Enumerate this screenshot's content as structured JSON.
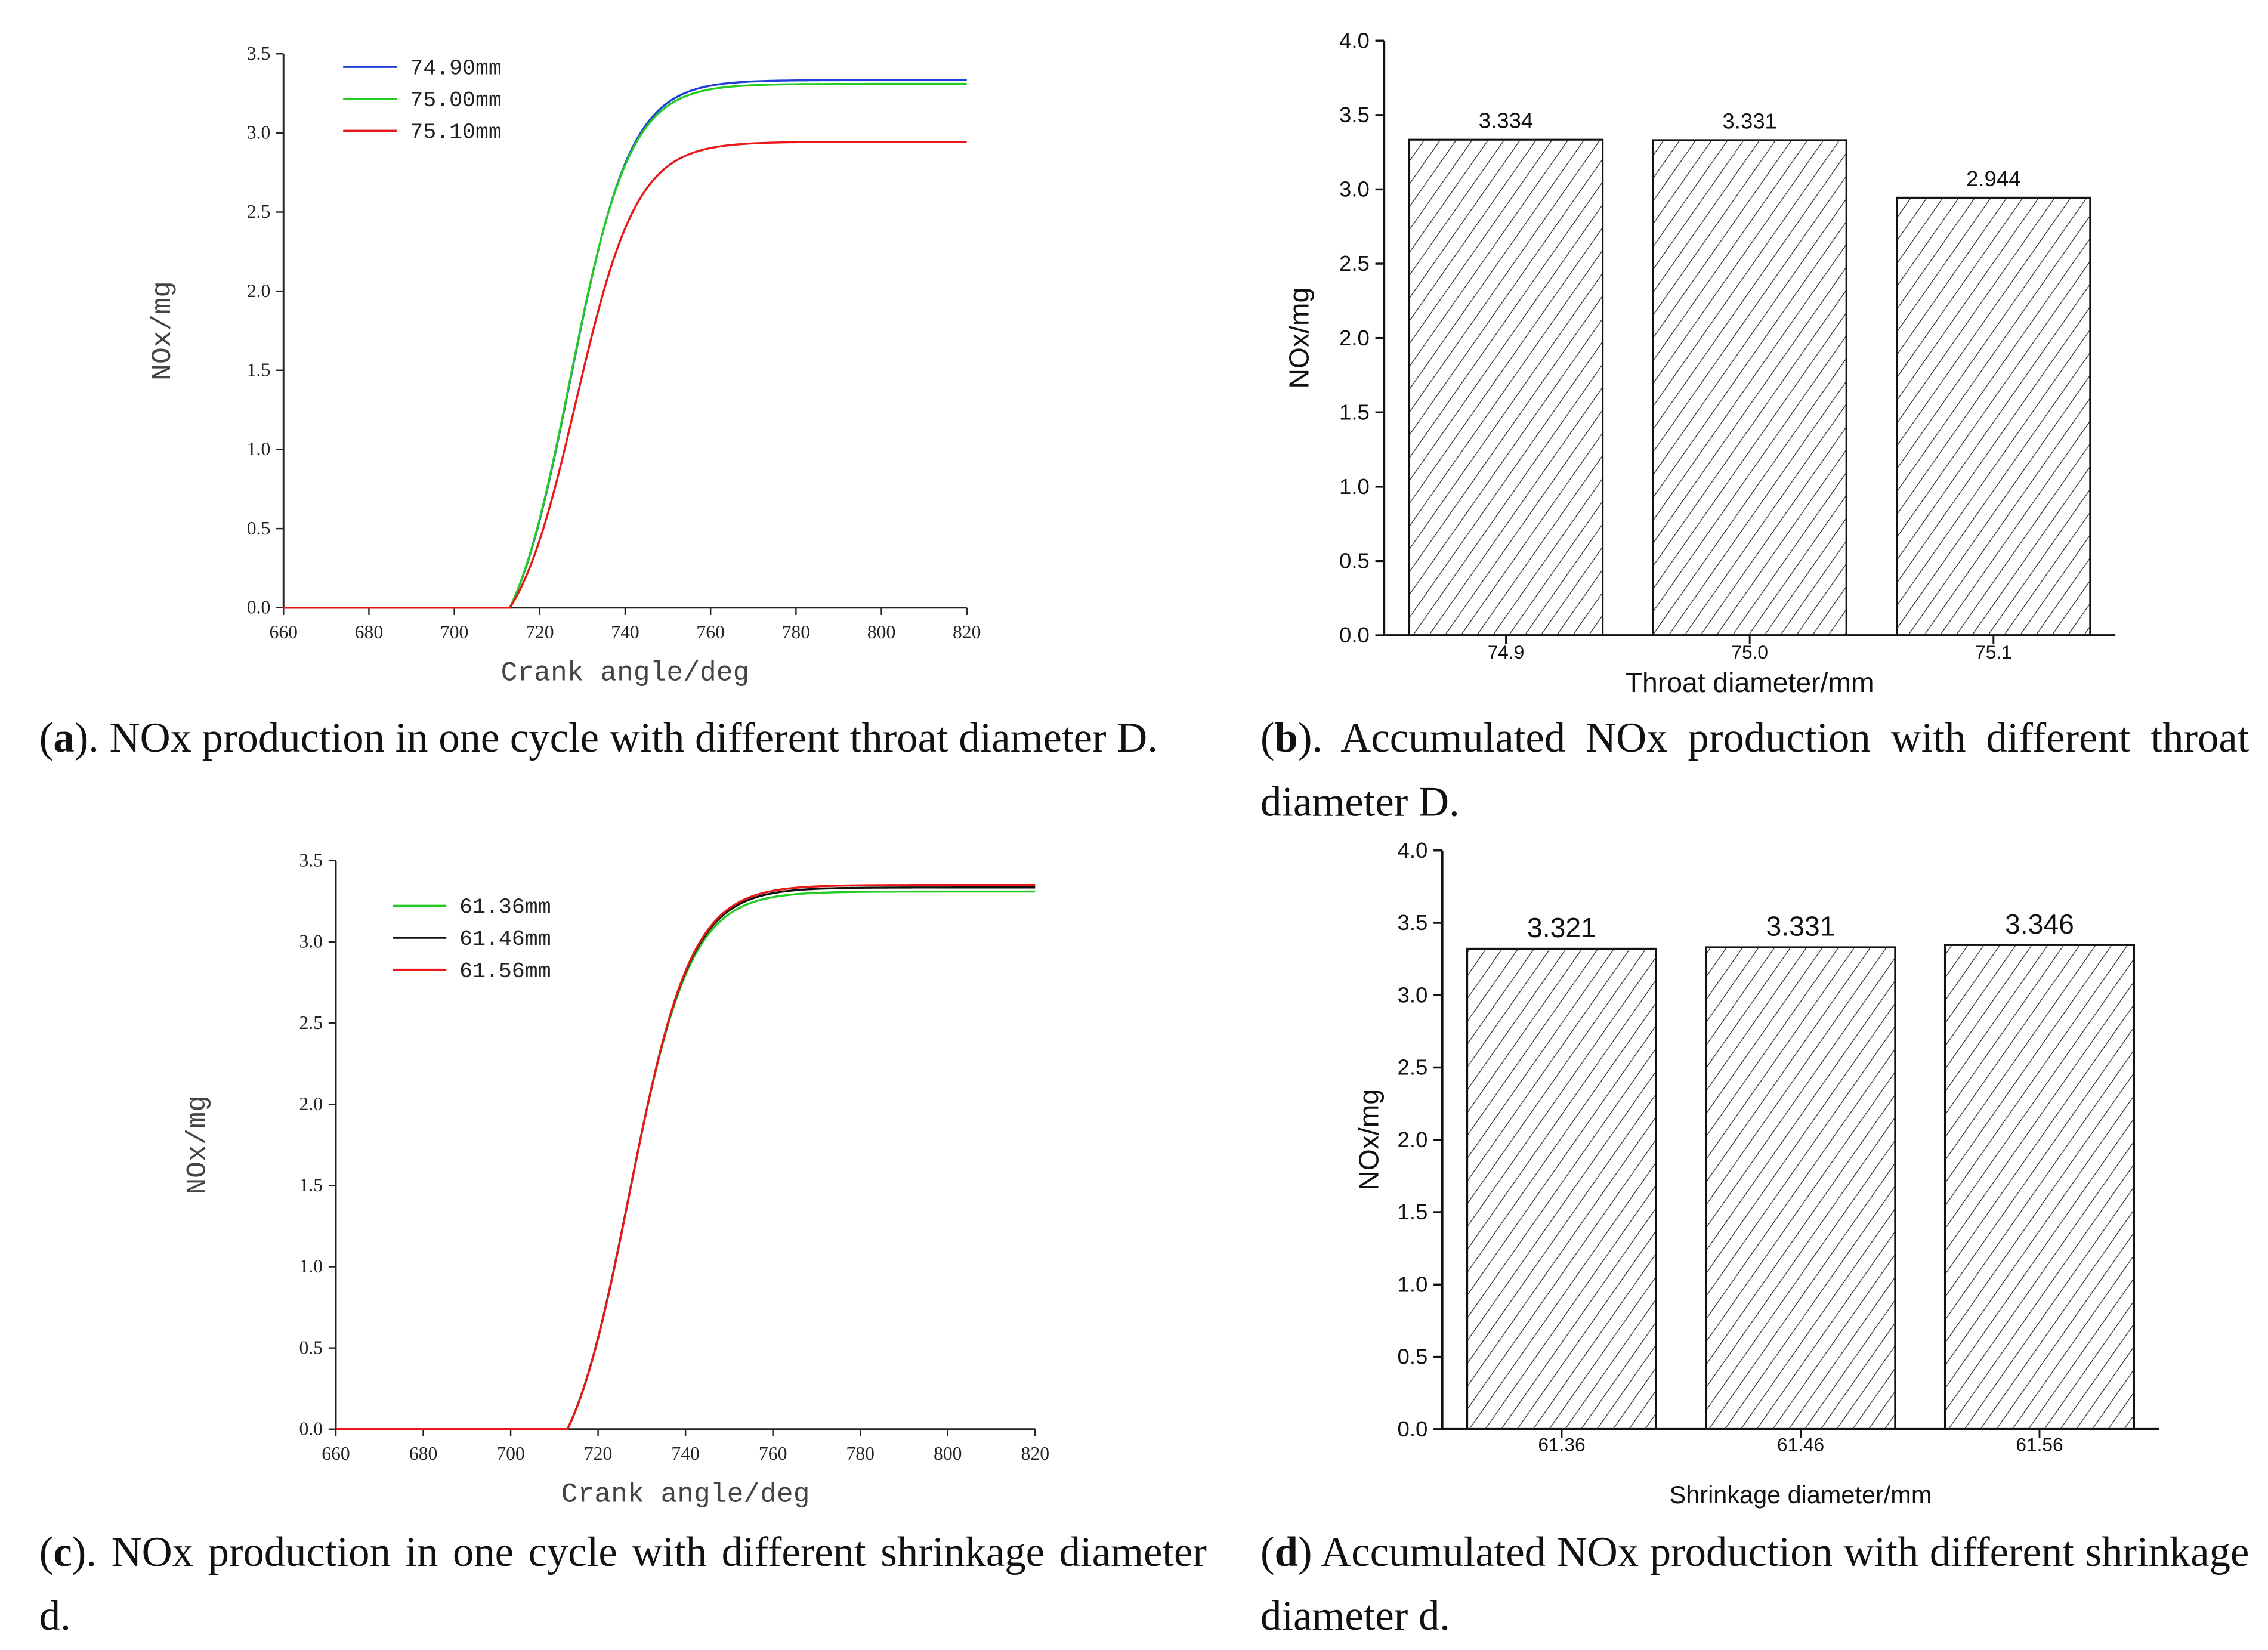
{
  "chart_data": [
    {
      "id": "a",
      "type": "line",
      "xlabel": "Crank angle/deg",
      "ylabel": "NOx/mg",
      "xlim": [
        660,
        820
      ],
      "ylim": [
        0,
        3.5
      ],
      "xticks": [
        "660",
        "680",
        "700",
        "720",
        "740",
        "760",
        "780",
        "800",
        "820"
      ],
      "yticks": [
        "0.0",
        "0.5",
        "1.0",
        "1.5",
        "2.0",
        "2.5",
        "3.0",
        "3.5"
      ],
      "legend": "top-left",
      "series": [
        {
          "name": "74.90mm",
          "color": "#1f3fd8",
          "onset": 713,
          "final": 3.334,
          "rate": 0.142,
          "center": 727.2
        },
        {
          "name": "75.00mm",
          "color": "#22cc22",
          "onset": 713,
          "final": 3.31,
          "rate": 0.142,
          "center": 727.0
        },
        {
          "name": "75.10mm",
          "color": "#e81818",
          "onset": 713,
          "final": 2.944,
          "rate": 0.14,
          "center": 728.5
        }
      ]
    },
    {
      "id": "b",
      "type": "bar",
      "xlabel": "Throat diameter/mm",
      "ylabel": "NOx/mg",
      "ylim": [
        0,
        4.0
      ],
      "yticks": [
        "0.0",
        "0.5",
        "1.0",
        "1.5",
        "2.0",
        "2.5",
        "3.0",
        "3.5",
        "4.0"
      ],
      "categories": [
        "74.9",
        "75.0",
        "75.1"
      ],
      "values": [
        3.334,
        3.331,
        2.944
      ],
      "value_labels": [
        "3.334",
        "3.331",
        "2.944"
      ],
      "fill": "hatched"
    },
    {
      "id": "c",
      "type": "line",
      "xlabel": "Crank angle/deg",
      "ylabel": "NOx/mg",
      "xlim": [
        660,
        820
      ],
      "ylim": [
        0,
        3.5
      ],
      "xticks": [
        "660",
        "680",
        "700",
        "720",
        "740",
        "760",
        "780",
        "800",
        "820"
      ],
      "yticks": [
        "0.0",
        "0.5",
        "1.0",
        "1.5",
        "2.0",
        "2.5",
        "3.0",
        "3.5"
      ],
      "legend": "top-left",
      "series": [
        {
          "name": "61.36mm",
          "color": "#22cc22",
          "onset": 713,
          "final": 3.31,
          "rate": 0.142,
          "center": 727.0
        },
        {
          "name": "61.46mm",
          "color": "#111111",
          "onset": 713,
          "final": 3.335,
          "rate": 0.142,
          "center": 727.1
        },
        {
          "name": "61.56mm",
          "color": "#e81818",
          "onset": 713,
          "final": 3.35,
          "rate": 0.142,
          "center": 727.2
        }
      ]
    },
    {
      "id": "d",
      "type": "bar",
      "xlabel": "Shrinkage diameter/mm",
      "ylabel": "NOx/mg",
      "ylim": [
        0,
        4.0
      ],
      "yticks": [
        "0.0",
        "0.5",
        "1.0",
        "1.5",
        "2.0",
        "2.5",
        "3.0",
        "3.5",
        "4.0"
      ],
      "categories": [
        "61.36",
        "61.46",
        "61.56"
      ],
      "values": [
        3.321,
        3.331,
        3.346
      ],
      "value_labels": [
        "3.321",
        "3.331",
        "3.346"
      ],
      "fill": "hatched"
    }
  ],
  "captions": {
    "a": {
      "letter": "a",
      "text": "). NOx production in one cycle with different throat diameter D."
    },
    "b": {
      "letter": "b",
      "text": "). Accumulated NOx production with different throat diameter D."
    },
    "c": {
      "letter": "c",
      "text": "). NOx production in one cycle with different shrinkage diameter d."
    },
    "d": {
      "letter": "d",
      "text": ") Accumulated NOx production with different shrinkage diameter d."
    }
  }
}
